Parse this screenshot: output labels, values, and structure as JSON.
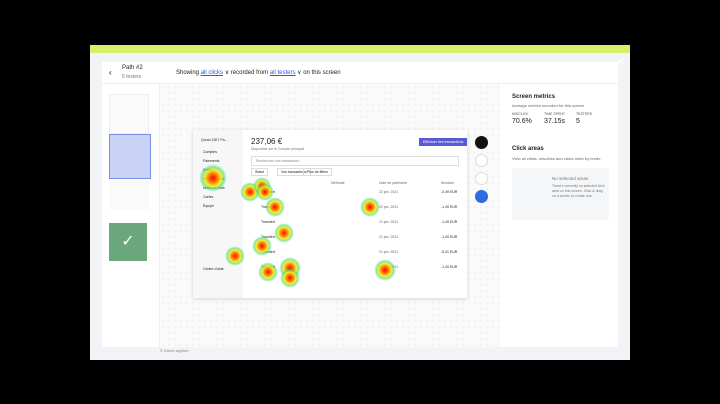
{
  "header": {
    "path_title": "Path #2",
    "path_subtitle": "5 testers",
    "showing": "Showing",
    "clicks_filter": "all clicks",
    "recorded_from": "recorded from",
    "testers_filter": "all testers",
    "on_screen": "on this screen"
  },
  "metrics": {
    "title": "Screen metrics",
    "subtitle": "Average metrics recorded for this screen",
    "items": [
      {
        "label": "MISCLICK",
        "value": "70.6%"
      },
      {
        "label": "TIME SPENT",
        "value": "37.15s"
      },
      {
        "label": "TESTERS",
        "value": "5"
      }
    ]
  },
  "click_areas": {
    "title": "Click areas",
    "subtitle": "View all clicks, misclicks and clicks order by tester.",
    "empty_title": "No selected areas",
    "empty_text": "There's currently no selected click area on this screen. Click & drag on a screen to create one."
  },
  "app": {
    "account": "Qonto 1307 Pa...",
    "balance": "237,06 €",
    "balance_caption": "Disponible sur le Compte principal",
    "action": "Effectuer des transactions",
    "search": "Rechercher une transaction...",
    "filters": [
      "Statut",
      "Vos transactions",
      "Plus de filtres"
    ],
    "columns": [
      "Méthode",
      "Date de paiement",
      "Montant"
    ],
    "nav": [
      "Comptes",
      "Paiements",
      "Débits",
      "Prélèvements",
      "Notes de frais",
      "Cartes",
      "Équipe"
    ],
    "help": "Centre d'aide",
    "rows": [
      {
        "name": "Transfert",
        "date": "22 jan. 2021",
        "amount": "-0,49 EUR"
      },
      {
        "name": "Transfert",
        "date": "22 jan. 2021",
        "amount": "-1,49 EUR"
      },
      {
        "name": "Transfert",
        "date": "21 jan. 2021",
        "amount": "-1,49 EUR"
      },
      {
        "name": "Transfert",
        "date": "21 jan. 2021",
        "amount": "-1,49 EUR"
      },
      {
        "name": "Transfert",
        "date": "21 jan. 2021",
        "amount": "-5,01 EUR"
      },
      {
        "name": "Transfert",
        "date": "20 jan. 2021",
        "amount": "-1,49 EUR"
      }
    ]
  },
  "footer": "© Direct applied"
}
